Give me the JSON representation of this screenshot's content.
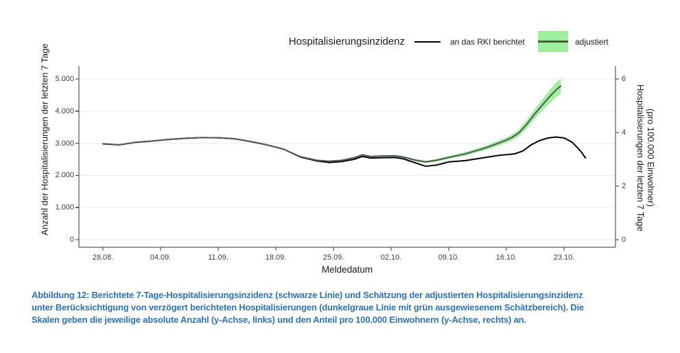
{
  "legend": {
    "title": "Hospitalisierungsinzidenz",
    "items": [
      {
        "label": "an das RKI berichtet",
        "color": "#000000",
        "band_color": null
      },
      {
        "label": "adjustiert",
        "color": "#555555",
        "band_color": "#9fef9f"
      }
    ]
  },
  "colors": {
    "caption": "#2E74B5",
    "grid": "#ebebeb",
    "axis": "#333333",
    "tick_label": "#404040",
    "reported_line": "#000000",
    "adjusted_line": "#555555",
    "band": "#9fef9f"
  },
  "caption": {
    "lines": [
      "Abbildung 12: Berichtete 7-Tage-Hospitalisierungsinzidenz (schwarze Linie) und Schätzung der adjustierten Hospitalisierungsinzidenz",
      "unter Berücksichtigung von verzögert berichteten Hospitalisierungen (dunkelgraue Linie mit grün ausgewiesenem Schätzbereich). Die",
      "Skalen geben die jeweilige absolute Anzahl (y-Achse, links) und den Anteil pro 100.000 Einwohnern (y-Achse, rechts) an."
    ]
  },
  "chart_data": {
    "type": "line",
    "x_axis": {
      "label": "Meldedatum",
      "ticks": [
        "28.08.",
        "04.09.",
        "11.09.",
        "18.09.",
        "25.09.",
        "02.10.",
        "09.10.",
        "16.10.",
        "23.10."
      ],
      "tick_day_offsets": [
        0,
        7,
        14,
        21,
        28,
        35,
        42,
        49,
        56
      ]
    },
    "y_axis_left": {
      "label": "Anzahl der Hospitalisierungen der letzten 7 Tage",
      "ticks": [
        "0",
        "1.000",
        "2.000",
        "3.000",
        "4.000",
        "5.000"
      ],
      "tick_values": [
        0,
        1000,
        2000,
        3000,
        4000,
        5000
      ],
      "range": [
        0,
        5000
      ],
      "grid": true
    },
    "y_axis_right": {
      "label_line1": "Hospitalisierungen der letzten 7 Tage",
      "label_line2": "(pro 100.000 Einwohner)",
      "ticks": [
        "0",
        "2",
        "4",
        "6"
      ],
      "tick_values": [
        0,
        2,
        4,
        6
      ],
      "range": [
        0,
        6
      ]
    },
    "legend_position": "top",
    "series": [
      {
        "name": "an das RKI berichtet",
        "color": "#000000",
        "points": [
          [
            0,
            2980
          ],
          [
            2,
            2950
          ],
          [
            4,
            3030
          ],
          [
            6,
            3070
          ],
          [
            8,
            3120
          ],
          [
            10,
            3155
          ],
          [
            12,
            3175
          ],
          [
            14,
            3170
          ],
          [
            16,
            3140
          ],
          [
            18,
            3050
          ],
          [
            20,
            2945
          ],
          [
            22,
            2810
          ],
          [
            24,
            2570
          ],
          [
            26,
            2450
          ],
          [
            27.5,
            2400
          ],
          [
            29,
            2430
          ],
          [
            30.5,
            2500
          ],
          [
            31.5,
            2590
          ],
          [
            32.5,
            2540
          ],
          [
            34,
            2550
          ],
          [
            35.5,
            2555
          ],
          [
            36.5,
            2515
          ],
          [
            38,
            2385
          ],
          [
            39.2,
            2285
          ],
          [
            40.5,
            2320
          ],
          [
            42,
            2420
          ],
          [
            44,
            2460
          ],
          [
            46,
            2540
          ],
          [
            48,
            2620
          ],
          [
            50,
            2670
          ],
          [
            51,
            2760
          ],
          [
            52,
            2950
          ],
          [
            53,
            3080
          ],
          [
            54,
            3160
          ],
          [
            55,
            3195
          ],
          [
            56,
            3165
          ],
          [
            57,
            3030
          ],
          [
            58,
            2760
          ],
          [
            58.6,
            2545
          ]
        ]
      },
      {
        "name": "adjustiert",
        "color": "#555555",
        "points": [
          [
            0,
            2980
          ],
          [
            2,
            2950
          ],
          [
            4,
            3030
          ],
          [
            6,
            3070
          ],
          [
            8,
            3120
          ],
          [
            10,
            3155
          ],
          [
            12,
            3175
          ],
          [
            14,
            3170
          ],
          [
            16,
            3140
          ],
          [
            18,
            3050
          ],
          [
            20,
            2945
          ],
          [
            22,
            2810
          ],
          [
            24,
            2580
          ],
          [
            26,
            2470
          ],
          [
            27.5,
            2440
          ],
          [
            29,
            2470
          ],
          [
            30.5,
            2550
          ],
          [
            31.5,
            2640
          ],
          [
            32.5,
            2590
          ],
          [
            34,
            2605
          ],
          [
            35.5,
            2610
          ],
          [
            36.5,
            2570
          ],
          [
            38,
            2470
          ],
          [
            39.2,
            2420
          ],
          [
            40.5,
            2470
          ],
          [
            42,
            2560
          ],
          [
            44,
            2670
          ],
          [
            46,
            2820
          ],
          [
            47,
            2905
          ],
          [
            48,
            3000
          ],
          [
            49,
            3100
          ],
          [
            49.6,
            3170
          ],
          [
            50.5,
            3320
          ],
          [
            51.5,
            3600
          ],
          [
            52.5,
            3930
          ],
          [
            53.5,
            4230
          ],
          [
            54.5,
            4520
          ],
          [
            55.2,
            4700
          ],
          [
            55.6,
            4780
          ]
        ],
        "band": {
          "color": "#9fef9f",
          "points": [
            [
              29,
              2455,
              2485
            ],
            [
              30.5,
              2530,
              2570
            ],
            [
              31.5,
              2615,
              2665
            ],
            [
              32.5,
              2565,
              2615
            ],
            [
              34,
              2575,
              2635
            ],
            [
              35.5,
              2580,
              2640
            ],
            [
              36.5,
              2538,
              2602
            ],
            [
              38,
              2435,
              2505
            ],
            [
              39.2,
              2382,
              2458
            ],
            [
              40.5,
              2428,
              2512
            ],
            [
              42,
              2512,
              2608
            ],
            [
              44,
              2615,
              2725
            ],
            [
              46,
              2755,
              2885
            ],
            [
              47,
              2835,
              2975
            ],
            [
              48,
              2922,
              3078
            ],
            [
              49,
              3015,
              3185
            ],
            [
              49.6,
              3080,
              3260
            ],
            [
              50.5,
              3215,
              3425
            ],
            [
              51.5,
              3470,
              3730
            ],
            [
              52.5,
              3775,
              4085
            ],
            [
              53.5,
              4050,
              4410
            ],
            [
              54.5,
              4310,
              4730
            ],
            [
              55.2,
              4470,
              4930
            ],
            [
              55.6,
              4540,
              5020
            ]
          ]
        }
      }
    ]
  }
}
